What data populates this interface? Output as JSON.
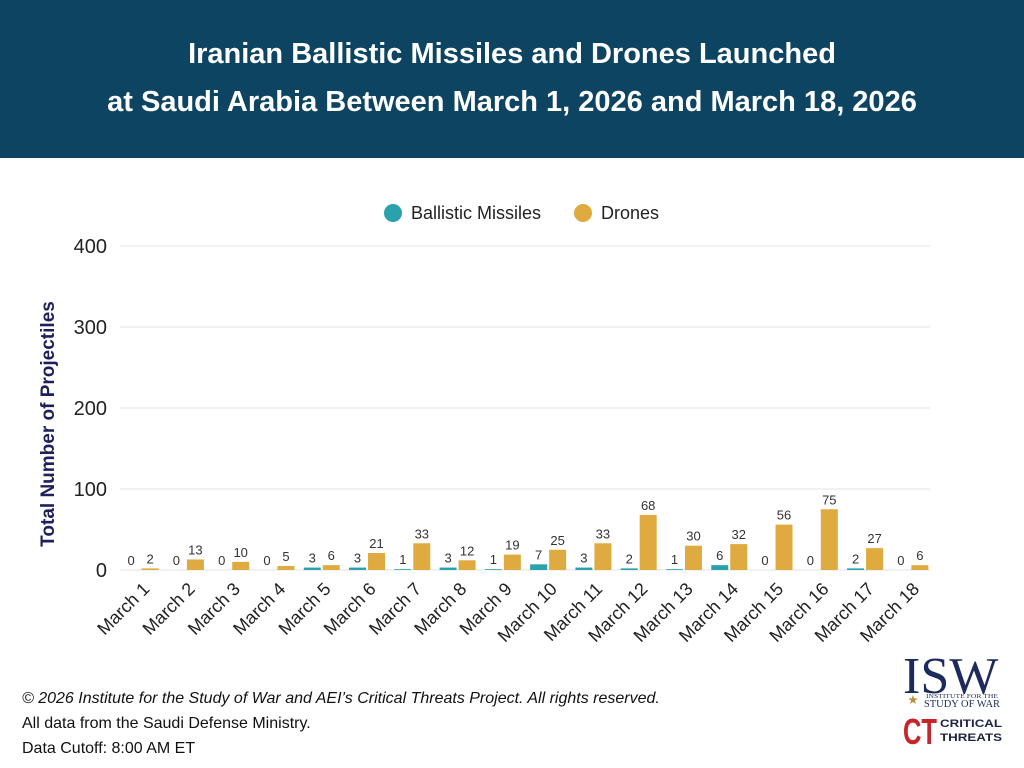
{
  "theme": {
    "header_bg": "#0d4462",
    "axis_title_color": "#1f1f5b",
    "gridline_color": "#e3e3e3"
  },
  "chart_data": {
    "type": "bar",
    "title": "Iranian Ballistic Missiles and Drones Launched\nat Saudi Arabia Between March 1, 2026 and March 18, 2026",
    "ylabel": "Total Number of Projectiles",
    "ylim": [
      0,
      400
    ],
    "yticks": [
      0,
      100,
      200,
      300,
      400
    ],
    "grid": "horizontal",
    "legend": "top-center",
    "data_labels": true,
    "categories": [
      "March 1",
      "March 2",
      "March 3",
      "March 4",
      "March 5",
      "March 6",
      "March 7",
      "March 8",
      "March 9",
      "March 10",
      "March 11",
      "March 12",
      "March 13",
      "March 14",
      "March 15",
      "March 16",
      "March 17",
      "March 18"
    ],
    "series": [
      {
        "name": "Ballistic Missiles",
        "color": "#2aa2ae",
        "values": [
          0,
          0,
          0,
          0,
          3,
          3,
          1,
          3,
          1,
          7,
          3,
          2,
          1,
          6,
          0,
          0,
          2,
          0
        ]
      },
      {
        "name": "Drones",
        "color": "#dfab40",
        "values": [
          2,
          13,
          10,
          5,
          6,
          21,
          33,
          12,
          19,
          25,
          33,
          68,
          30,
          32,
          56,
          75,
          27,
          6
        ]
      }
    ]
  },
  "footer": {
    "copyright": "© 2026 Institute for the Study of War and AEI’s Critical Threats Project. All rights reserved.",
    "source": "All data from the Saudi Defense Ministry.",
    "cutoff": "Data Cutoff: 8:00 AM ET"
  },
  "logos": {
    "isw": {
      "wordmark": "ISW",
      "line1": "INSTITUTE FOR THE",
      "line2": "STUDY OF WAR",
      "color": "#1d2a5c",
      "accent": "#b8903f"
    },
    "ct": {
      "wordmark": "CT",
      "line1": "CRITICAL",
      "line2": "THREATS",
      "color": "#c8242b"
    }
  }
}
